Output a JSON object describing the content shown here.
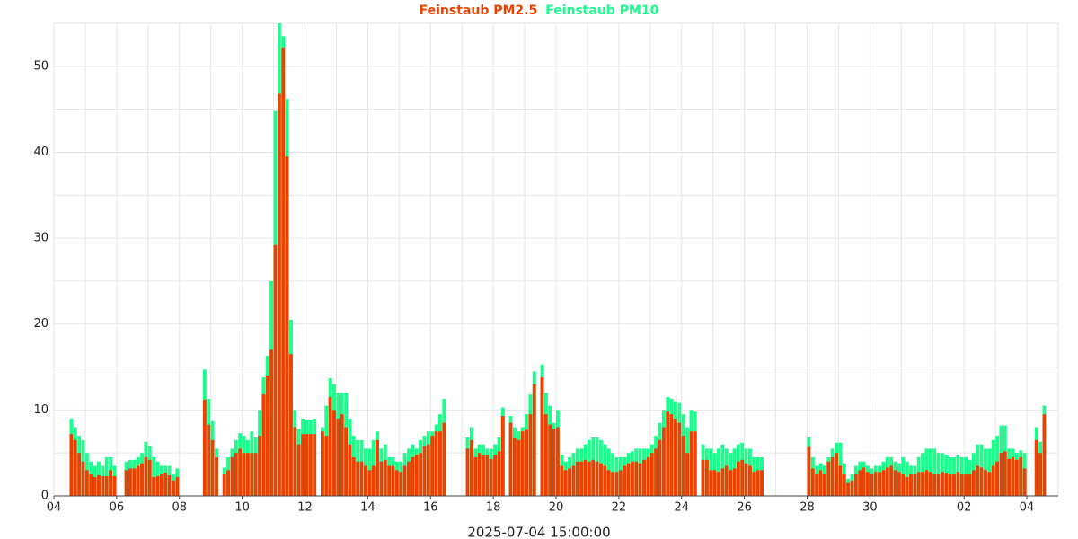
{
  "chart_data": {
    "type": "bar",
    "x_label": "2025-07-04 15:00:00",
    "categories": [
      "04",
      null,
      null,
      null,
      null,
      null,
      null,
      null,
      null,
      null,
      null,
      null,
      null,
      null,
      null,
      null,
      "06",
      null,
      null,
      null,
      null,
      null,
      null,
      null,
      null,
      null,
      null,
      null,
      null,
      null,
      null,
      null,
      "08",
      null,
      null,
      null,
      null,
      null,
      null,
      null,
      null,
      null,
      null,
      null,
      null,
      null,
      null,
      null,
      "10",
      null,
      null,
      null,
      null,
      null,
      null,
      null,
      null,
      null,
      null,
      null,
      null,
      null,
      null,
      null,
      "12",
      null,
      null,
      null,
      null,
      null,
      null,
      null,
      null,
      null,
      null,
      null,
      null,
      null,
      null,
      null,
      "14",
      null,
      null,
      null,
      null,
      null,
      null,
      null,
      null,
      null,
      null,
      null,
      null,
      null,
      null,
      null,
      "16",
      null,
      null,
      null,
      null,
      null,
      null,
      null,
      null,
      null,
      null,
      null,
      null,
      null,
      null,
      null,
      "18",
      null,
      null,
      null,
      null,
      null,
      null,
      null,
      null,
      null,
      null,
      null,
      null,
      null,
      null,
      null,
      "20",
      null,
      null,
      null,
      null,
      null,
      null,
      null,
      null,
      null,
      null,
      null,
      null,
      null,
      null,
      null,
      "22",
      null,
      null,
      null,
      null,
      null,
      null,
      null,
      null,
      null,
      null,
      null,
      null,
      null,
      null,
      null,
      "24",
      null,
      null,
      null,
      null,
      null,
      null,
      null,
      null,
      null,
      null,
      null,
      null,
      null,
      null,
      null,
      "26",
      null,
      null,
      null,
      null,
      null,
      null,
      null,
      null,
      null,
      null,
      null,
      null,
      null,
      null,
      null,
      "28",
      null,
      null,
      null,
      null,
      null,
      null,
      null,
      null,
      null,
      null,
      null,
      null,
      null,
      null,
      null,
      "30",
      null,
      null,
      null,
      null,
      null,
      null,
      null,
      null,
      null,
      null,
      null,
      null,
      null,
      null,
      null,
      null,
      null,
      null,
      null,
      null,
      null,
      null,
      null,
      "02",
      null,
      null,
      null,
      null,
      null,
      null,
      null,
      null,
      null,
      null,
      null,
      null,
      null,
      null,
      null,
      "04",
      null,
      null,
      null,
      null,
      null,
      null,
      null
    ],
    "series": [
      {
        "name": "Feinstaub PM2.5",
        "color": "#ee4000",
        "values": [
          null,
          null,
          null,
          null,
          7.2,
          6.5,
          5,
          4,
          3,
          2.5,
          2.2,
          2.4,
          2.3,
          2.3,
          3,
          2.3,
          null,
          null,
          3,
          3.2,
          3.2,
          3.5,
          3.8,
          4.5,
          4.2,
          2.2,
          2.3,
          2.5,
          2.7,
          2.4,
          1.8,
          2.2,
          null,
          null,
          null,
          null,
          null,
          null,
          11.2,
          8.3,
          6.5,
          4.5,
          null,
          2.5,
          3,
          4.5,
          5,
          5.5,
          5,
          5,
          5,
          5,
          7,
          11.8,
          14,
          17,
          29.2,
          46.8,
          52.2,
          39.5,
          16.5,
          8,
          6,
          7.2,
          7.2,
          7.2,
          7.2,
          null,
          7.5,
          7,
          11.5,
          10,
          9,
          9.5,
          8,
          6,
          4.5,
          4,
          4,
          3.5,
          3,
          3.5,
          6.5,
          4,
          4.2,
          3.5,
          3.5,
          3,
          2.8,
          3.5,
          4,
          4.5,
          4.8,
          5,
          5.8,
          6,
          7,
          7.5,
          7.5,
          8.5,
          null,
          null,
          null,
          null,
          null,
          5.5,
          6.5,
          4.5,
          5,
          4.8,
          4.8,
          4.3,
          4.8,
          5.2,
          9.3,
          null,
          8.5,
          6.7,
          6.5,
          7.5,
          7.7,
          9.5,
          13,
          null,
          13.8,
          9.5,
          8.3,
          7.8,
          8,
          3.5,
          3,
          3.2,
          3.5,
          4,
          4,
          4.2,
          4,
          4.2,
          4,
          3.8,
          3.5,
          3,
          2.8,
          2.8,
          3,
          3.5,
          3.8,
          4,
          4,
          3.8,
          4.2,
          4.5,
          5,
          5.5,
          6.5,
          8,
          9.8,
          9.5,
          9,
          8.5,
          7,
          5,
          7.5,
          7.5,
          null,
          4.2,
          4.2,
          3,
          3,
          2.8,
          3.2,
          3.5,
          3,
          3.2,
          4,
          4.2,
          3.8,
          3.5,
          2.8,
          3,
          3,
          null,
          null,
          null,
          null,
          null,
          null,
          null,
          null,
          null,
          null,
          null,
          5.7,
          3.2,
          2.5,
          3,
          2.5,
          4,
          4.5,
          5,
          3.5,
          2.5,
          1.5,
          1.8,
          2.5,
          3,
          3.3,
          2.8,
          2.5,
          2.8,
          2.8,
          3,
          3.3,
          3.5,
          3,
          2.8,
          2.5,
          2.2,
          2.5,
          2.5,
          2.8,
          2.8,
          3,
          2.8,
          2.5,
          2.5,
          2.8,
          2.6,
          2.5,
          2.5,
          2.8,
          2.5,
          2.5,
          2.5,
          3,
          3.5,
          3.3,
          3,
          2.8,
          3.5,
          4,
          5,
          5.2,
          4.3,
          4.5,
          4.2,
          4.5,
          3.2,
          null,
          null,
          6.5,
          5,
          9.5,
          null,
          null,
          null
        ]
      },
      {
        "name": "Feinstaub PM10",
        "color": "#1aff8c",
        "values": [
          null,
          null,
          null,
          null,
          9,
          8,
          7,
          6.5,
          5,
          4,
          3.5,
          4,
          3.5,
          4.5,
          4.5,
          3.5,
          null,
          null,
          4,
          4.2,
          4.2,
          4.5,
          5,
          6.3,
          5.8,
          4.5,
          4,
          3.5,
          3.5,
          3.5,
          2.5,
          3.2,
          null,
          null,
          null,
          null,
          null,
          null,
          14.7,
          11.3,
          8.7,
          5.5,
          null,
          3.3,
          4.5,
          5.5,
          6.5,
          7.3,
          7,
          6.5,
          7.5,
          6.8,
          10,
          13.8,
          16.3,
          25,
          44.8,
          55,
          53.5,
          46.2,
          20.5,
          10,
          7.8,
          9,
          8.8,
          8.8,
          9,
          null,
          8,
          10.5,
          13.7,
          13,
          12,
          12,
          12,
          9,
          7,
          6.5,
          6.5,
          5.5,
          5.5,
          6.5,
          7.5,
          5.5,
          6,
          4.5,
          4.5,
          4,
          4,
          5,
          5.5,
          6,
          5.5,
          6.5,
          7,
          7.5,
          7.5,
          8.3,
          9.5,
          11.3,
          null,
          null,
          null,
          null,
          null,
          6.8,
          8,
          5.5,
          6,
          6,
          5.5,
          5.5,
          6,
          6.8,
          10.3,
          null,
          9.3,
          8,
          7.5,
          8,
          9.5,
          11.8,
          14.5,
          null,
          15.3,
          12,
          10.5,
          8.5,
          10,
          4.8,
          4,
          4.5,
          5,
          5.5,
          5.5,
          6,
          6.5,
          6.8,
          6.8,
          6.5,
          6,
          5.5,
          5,
          4.5,
          4.5,
          4.5,
          5,
          5.2,
          5.5,
          5.5,
          5.5,
          5.5,
          6,
          7,
          8.5,
          10,
          11.5,
          11.3,
          11,
          10.8,
          9.5,
          8,
          10,
          9.8,
          null,
          6,
          5.5,
          5.5,
          5,
          5.5,
          6,
          5.5,
          5,
          5.5,
          6,
          6.2,
          5.5,
          5.5,
          4.5,
          4.5,
          4.5,
          null,
          null,
          null,
          null,
          null,
          null,
          null,
          null,
          null,
          null,
          null,
          6.8,
          4.5,
          3.5,
          3.8,
          3.5,
          4.5,
          5.5,
          6.2,
          6.2,
          3.8,
          2,
          2.5,
          3.5,
          4,
          4,
          3.5,
          3.2,
          3.5,
          3.5,
          4,
          4.5,
          4.5,
          4,
          3.8,
          4.5,
          4,
          3.5,
          3.5,
          4.5,
          5,
          5.5,
          5.5,
          5.5,
          5,
          5,
          4.8,
          4.5,
          4.5,
          4.8,
          4.5,
          4.5,
          4.2,
          5,
          6,
          6,
          5.5,
          5.5,
          6.5,
          7,
          8.2,
          8.2,
          5.5,
          5.5,
          5,
          5.3,
          5,
          null,
          null,
          8,
          6.3,
          10.5,
          null,
          null,
          null
        ]
      }
    ],
    "ylim": [
      0,
      55
    ],
    "yticks": [
      0,
      10,
      20,
      30,
      40,
      50
    ],
    "grid": true
  }
}
